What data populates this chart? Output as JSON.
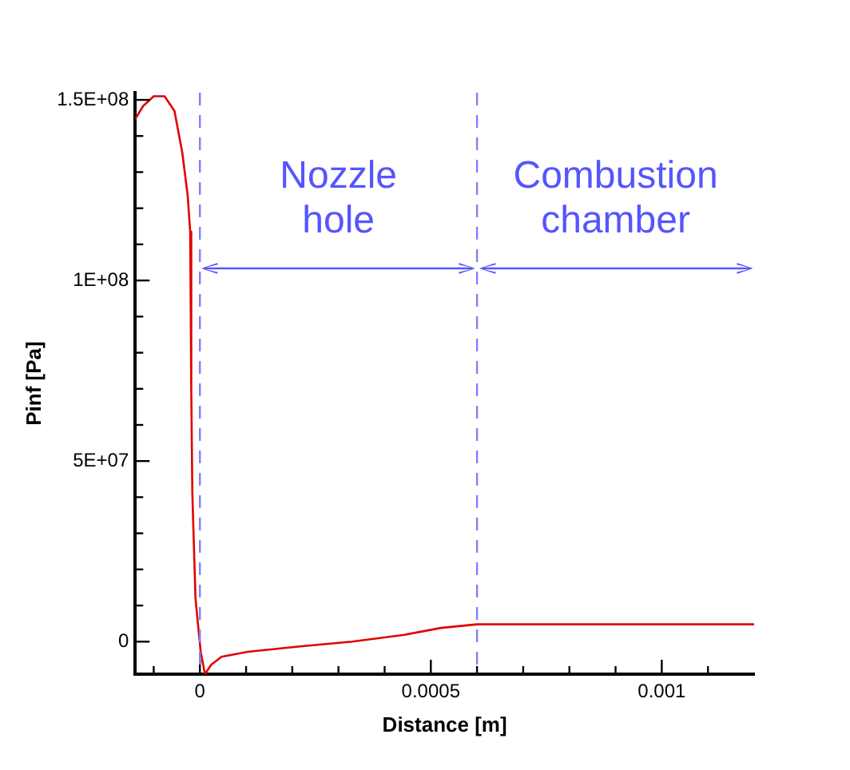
{
  "chart_data": {
    "type": "line",
    "xlabel": "Distance [m]",
    "ylabel": "Pinf [Pa]",
    "x": [
      -0.00014,
      -0.000123,
      -0.0001,
      -7.64e-05,
      -5.5e-05,
      -3.8e-05,
      -2.65e-05,
      -2.1e-05,
      -1.87e-05,
      -1.63e-05,
      -9.5e-06,
      1.7e-06,
      1.1e-05,
      2.44e-05,
      4.68e-05,
      0.0001035,
      0.000217,
      0.00033,
      0.000443,
      0.000522,
      0.0006,
      0.0012
    ],
    "series": [
      {
        "color": "#e00000",
        "values": [
          144700000,
          148300000,
          151000000,
          151000000,
          146900000,
          135300000,
          123600000,
          113500000,
          69900000,
          40800000,
          11900000,
          -2800000,
          -9000000,
          -6400000,
          -4200000,
          -2800000,
          -1300000,
          0,
          1900000,
          3800000,
          4800000,
          4800000
        ]
      }
    ],
    "xlim": [
      -0.00014,
      0.0012
    ],
    "xticks": [
      {
        "value": -0.0001,
        "label": null
      },
      0,
      {
        "value": 0.0001,
        "label": null
      },
      {
        "value": 0.0002,
        "label": null
      },
      {
        "value": 0.0003,
        "label": null
      },
      {
        "value": 0.0004,
        "label": null
      },
      0.0005,
      {
        "value": 0.0006,
        "label": null
      },
      {
        "value": 0.0007,
        "label": null
      },
      {
        "value": 0.0008,
        "label": null
      },
      {
        "value": 0.0009,
        "label": null
      },
      0.001,
      {
        "value": 0.0011,
        "label": null
      }
    ],
    "ylim": [
      -9000000,
      152000000
    ],
    "yticks": [
      0,
      {
        "value": 10000000,
        "label": null
      },
      {
        "value": 20000000,
        "label": null
      },
      {
        "value": 30000000,
        "label": null
      },
      {
        "value": 40000000,
        "label": null
      },
      {
        "value": 50000000,
        "label": "5E+07"
      },
      {
        "value": 60000000,
        "label": null
      },
      {
        "value": 70000000,
        "label": null
      },
      {
        "value": 80000000,
        "label": null
      },
      {
        "value": 90000000,
        "label": null
      },
      {
        "value": 100000000,
        "label": "1E+08"
      },
      {
        "value": 110000000,
        "label": null
      },
      {
        "value": 120000000,
        "label": null
      },
      {
        "value": 130000000,
        "label": null
      },
      {
        "value": 140000000,
        "label": null
      },
      {
        "value": 150000000,
        "label": "1.5E+08"
      }
    ],
    "ref_lines": [
      {
        "axis": "x",
        "value": 0,
        "color": "#8080ff",
        "line_style": "dashed"
      },
      {
        "axis": "x",
        "value": 0.0006,
        "color": "#8080ff",
        "line_style": "dashed"
      }
    ],
    "annotations": [
      "Nozzle\nhole",
      "Combustion\nchamber"
    ],
    "grid": false,
    "legend": false,
    "marker": "none",
    "line_style": "solid"
  }
}
